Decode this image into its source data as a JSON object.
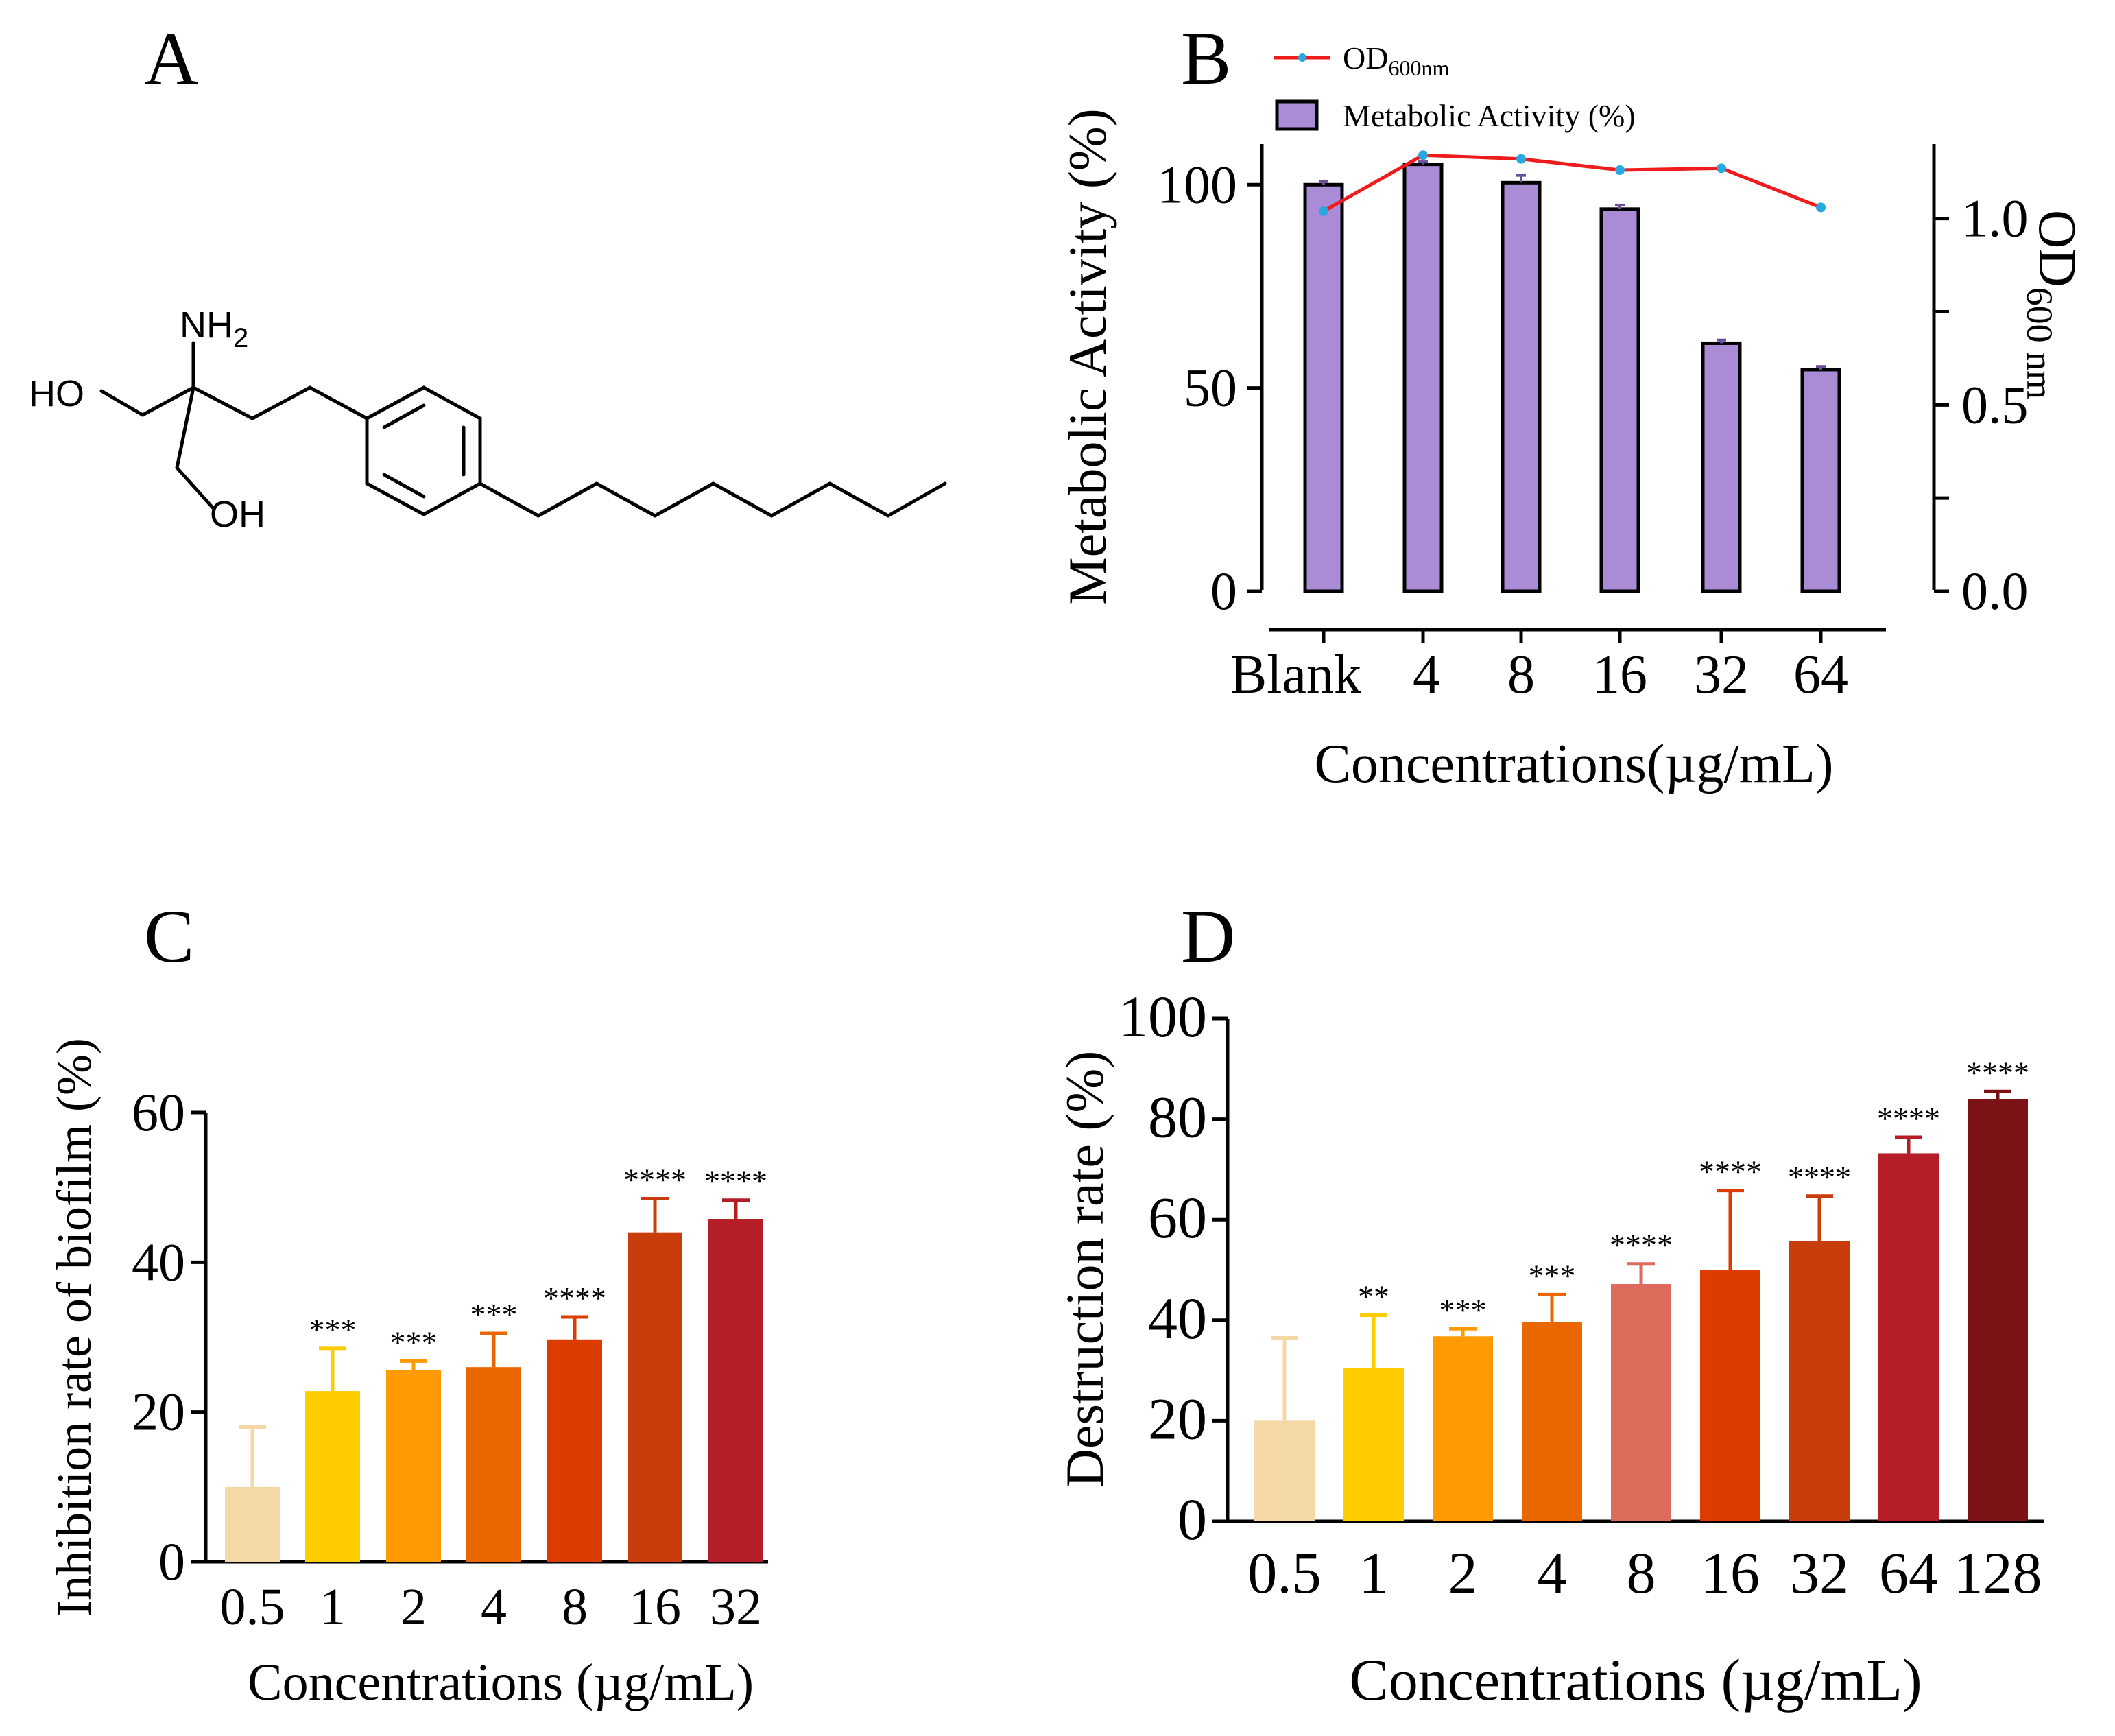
{
  "panel_labels": {
    "a": "A",
    "b": "B",
    "c": "C",
    "d": "D"
  },
  "molecule": {
    "nh2": "NH",
    "nh2_sub": "2",
    "ho": "HO",
    "oh": "OH"
  },
  "colors": {
    "bar_b": "#a98bd6",
    "line_b": "#ee1c1c",
    "marker_b": "#29a8e0",
    "c_bars": [
      "#f4d8a6",
      "#ffcc00",
      "#ff9a00",
      "#ea6700",
      "#dd3c00",
      "#c93c0c",
      "#b51e26"
    ],
    "d_bars": [
      "#f4d8a6",
      "#ffcc00",
      "#ff9a00",
      "#ea6700",
      "#dd6b5c",
      "#dd3c00",
      "#c93c0c",
      "#b51e26",
      "#7a1216"
    ]
  },
  "chart_data": [
    {
      "panel": "B",
      "type": "bar+line",
      "categories": [
        "Blank",
        "4",
        "8",
        "16",
        "32",
        "64"
      ],
      "series": [
        {
          "name": "Metabolic Activity (%)",
          "axis": "left",
          "values": [
            100,
            105,
            100.5,
            94,
            61,
            54.5
          ],
          "errors": [
            0.8,
            0.6,
            1.8,
            1.0,
            0.8,
            0.8
          ]
        },
        {
          "name": "OD600nm",
          "axis": "right",
          "values": [
            1.02,
            1.17,
            1.16,
            1.13,
            1.135,
            1.03
          ]
        }
      ],
      "ylabel": "Metabolic Activity (%)",
      "ylabel2": "OD",
      "ylabel2_sub": "600 nm",
      "xlabel": "Concentrations(µg/mL)",
      "ylim": [
        0,
        110
      ],
      "y2lim": [
        0,
        1.2
      ],
      "yticks": [
        0,
        50,
        100
      ],
      "y2ticks": [
        0.0,
        0.5,
        1.0
      ],
      "ytick_labels": [
        "0",
        "50",
        "100"
      ],
      "y2tick_labels": [
        "0.0",
        "0.5",
        "1.0"
      ],
      "legend": [
        {
          "label": "OD",
          "sub": "600nm"
        },
        {
          "label": "Metabolic Activity (%)"
        }
      ]
    },
    {
      "panel": "C",
      "type": "bar",
      "categories": [
        "0.5",
        "1",
        "2",
        "4",
        "8",
        "16",
        "32"
      ],
      "values": [
        10,
        22.8,
        25.6,
        26,
        29.7,
        44,
        45.8
      ],
      "errors": [
        8,
        5.7,
        1.2,
        4.5,
        3,
        4.5,
        2.5
      ],
      "significance": [
        "",
        "***",
        "***",
        "***",
        "****",
        "****",
        "****"
      ],
      "ylabel": "Inhibition rate of biofilm (%)",
      "xlabel": "Concentrations (µg/mL)",
      "ylim": [
        0,
        60
      ],
      "yticks": [
        0,
        20,
        40,
        60
      ],
      "ytick_labels": [
        "0",
        "20",
        "40",
        "60"
      ]
    },
    {
      "panel": "D",
      "type": "bar",
      "categories": [
        "0.5",
        "1",
        "2",
        "4",
        "8",
        "16",
        "32",
        "64",
        "128"
      ],
      "values": [
        20,
        30.5,
        36.8,
        39.6,
        47.2,
        50,
        55.7,
        73.2,
        84
      ],
      "errors": [
        16.5,
        10.5,
        1.5,
        5.5,
        4,
        15.8,
        9,
        3.2,
        1.5
      ],
      "significance": [
        "",
        "**",
        "***",
        "***",
        "****",
        "****",
        "****",
        "****",
        "****"
      ],
      "ylabel": "Destruction rate (%)",
      "xlabel": "Concentrations (µg/mL)",
      "ylim": [
        0,
        100
      ],
      "yticks": [
        0,
        20,
        40,
        60,
        80,
        100
      ],
      "ytick_labels": [
        "0",
        "20",
        "40",
        "60",
        "80",
        "100"
      ]
    }
  ]
}
